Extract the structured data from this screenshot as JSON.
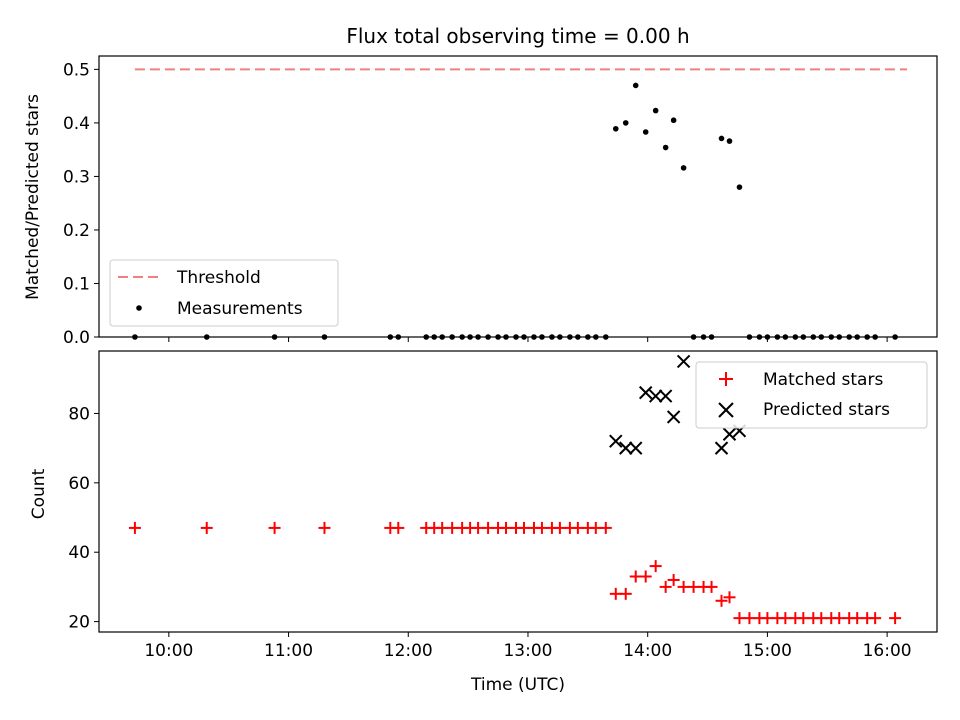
{
  "figure": {
    "title": "Flux total observing time = 0.00 h"
  },
  "chart_data": [
    {
      "type": "scatter",
      "panel": "top",
      "ylabel": "Matched/Predicted stars",
      "xlabel": "",
      "xlim": [
        "09:25",
        "16:25"
      ],
      "ylim": [
        0,
        0.525
      ],
      "yticks": [
        0.0,
        0.1,
        0.2,
        0.3,
        0.4,
        0.5
      ],
      "ytick_labels": [
        "0.0",
        "0.1",
        "0.2",
        "0.3",
        "0.4",
        "0.5"
      ],
      "xticks": [
        "10:00",
        "11:00",
        "12:00",
        "13:00",
        "14:00",
        "15:00",
        "16:00"
      ],
      "grid": false,
      "legend": "lower-left",
      "threshold": {
        "name": "Threshold",
        "y": 0.5,
        "x_range": [
          "09:43",
          "16:10"
        ],
        "color": "#f08080",
        "style": "dashed"
      },
      "series": [
        {
          "name": "Measurements",
          "color": "#000000",
          "marker": "dot",
          "points": [
            [
              "09:43",
              0.0
            ],
            [
              "10:19",
              0.0
            ],
            [
              "10:53",
              0.0
            ],
            [
              "11:18",
              0.0
            ],
            [
              "11:51",
              0.0
            ],
            [
              "11:55",
              0.0
            ],
            [
              "12:09",
              0.0
            ],
            [
              "12:13",
              0.0
            ],
            [
              "12:17",
              0.0
            ],
            [
              "12:22",
              0.0
            ],
            [
              "12:27",
              0.0
            ],
            [
              "12:31",
              0.0
            ],
            [
              "12:35",
              0.0
            ],
            [
              "12:40",
              0.0
            ],
            [
              "12:45",
              0.0
            ],
            [
              "12:49",
              0.0
            ],
            [
              "12:54",
              0.0
            ],
            [
              "12:58",
              0.0
            ],
            [
              "13:03",
              0.0
            ],
            [
              "13:07",
              0.0
            ],
            [
              "13:12",
              0.0
            ],
            [
              "13:16",
              0.0
            ],
            [
              "13:21",
              0.0
            ],
            [
              "13:25",
              0.0
            ],
            [
              "13:30",
              0.0
            ],
            [
              "13:34",
              0.0
            ],
            [
              "13:39",
              0.0
            ],
            [
              "13:44",
              0.389
            ],
            [
              "13:49",
              0.4
            ],
            [
              "13:54",
              0.47
            ],
            [
              "13:59",
              0.383
            ],
            [
              "14:04",
              0.423
            ],
            [
              "14:09",
              0.354
            ],
            [
              "14:13",
              0.405
            ],
            [
              "14:18",
              0.316
            ],
            [
              "14:23",
              0.0
            ],
            [
              "14:28",
              0.0
            ],
            [
              "14:32",
              0.0
            ],
            [
              "14:37",
              0.371
            ],
            [
              "14:41",
              0.366
            ],
            [
              "14:46",
              0.28
            ],
            [
              "14:51",
              0.0
            ],
            [
              "14:56",
              0.0
            ],
            [
              "15:00",
              0.0
            ],
            [
              "15:05",
              0.0
            ],
            [
              "15:09",
              0.0
            ],
            [
              "15:14",
              0.0
            ],
            [
              "15:18",
              0.0
            ],
            [
              "15:23",
              0.0
            ],
            [
              "15:27",
              0.0
            ],
            [
              "15:32",
              0.0
            ],
            [
              "15:36",
              0.0
            ],
            [
              "15:41",
              0.0
            ],
            [
              "15:45",
              0.0
            ],
            [
              "15:50",
              0.0
            ],
            [
              "15:54",
              0.0
            ],
            [
              "16:04",
              0.0
            ]
          ]
        }
      ]
    },
    {
      "type": "scatter",
      "panel": "bottom",
      "ylabel": "Count",
      "xlabel": "Time (UTC)",
      "xlim": [
        "09:25",
        "16:25"
      ],
      "ylim": [
        17,
        98
      ],
      "yticks": [
        20,
        40,
        60,
        80
      ],
      "ytick_labels": [
        "20",
        "40",
        "60",
        "80"
      ],
      "xticks": [
        "10:00",
        "11:00",
        "12:00",
        "13:00",
        "14:00",
        "15:00",
        "16:00"
      ],
      "xtick_labels": [
        "10:00",
        "11:00",
        "12:00",
        "13:00",
        "14:00",
        "15:00",
        "16:00"
      ],
      "grid": false,
      "legend": "upper-right",
      "series": [
        {
          "name": "Matched stars",
          "color": "#ff0000",
          "marker": "plus",
          "points": [
            [
              "09:43",
              47
            ],
            [
              "10:19",
              47
            ],
            [
              "10:53",
              47
            ],
            [
              "11:18",
              47
            ],
            [
              "11:51",
              47
            ],
            [
              "11:55",
              47
            ],
            [
              "12:09",
              47
            ],
            [
              "12:13",
              47
            ],
            [
              "12:17",
              47
            ],
            [
              "12:22",
              47
            ],
            [
              "12:27",
              47
            ],
            [
              "12:31",
              47
            ],
            [
              "12:35",
              47
            ],
            [
              "12:40",
              47
            ],
            [
              "12:45",
              47
            ],
            [
              "12:49",
              47
            ],
            [
              "12:54",
              47
            ],
            [
              "12:58",
              47
            ],
            [
              "13:03",
              47
            ],
            [
              "13:07",
              47
            ],
            [
              "13:12",
              47
            ],
            [
              "13:16",
              47
            ],
            [
              "13:21",
              47
            ],
            [
              "13:25",
              47
            ],
            [
              "13:30",
              47
            ],
            [
              "13:34",
              47
            ],
            [
              "13:39",
              47
            ],
            [
              "13:44",
              28
            ],
            [
              "13:49",
              28
            ],
            [
              "13:54",
              33
            ],
            [
              "13:59",
              33
            ],
            [
              "14:04",
              36
            ],
            [
              "14:09",
              30
            ],
            [
              "14:13",
              32
            ],
            [
              "14:18",
              30
            ],
            [
              "14:23",
              30
            ],
            [
              "14:28",
              30
            ],
            [
              "14:32",
              30
            ],
            [
              "14:37",
              26
            ],
            [
              "14:41",
              27
            ],
            [
              "14:46",
              21
            ],
            [
              "14:51",
              21
            ],
            [
              "14:56",
              21
            ],
            [
              "15:00",
              21
            ],
            [
              "15:05",
              21
            ],
            [
              "15:09",
              21
            ],
            [
              "15:14",
              21
            ],
            [
              "15:18",
              21
            ],
            [
              "15:23",
              21
            ],
            [
              "15:27",
              21
            ],
            [
              "15:32",
              21
            ],
            [
              "15:36",
              21
            ],
            [
              "15:41",
              21
            ],
            [
              "15:45",
              21
            ],
            [
              "15:50",
              21
            ],
            [
              "15:54",
              21
            ],
            [
              "16:04",
              21
            ]
          ]
        },
        {
          "name": "Predicted stars",
          "color": "#000000",
          "marker": "x",
          "points": [
            [
              "13:44",
              72
            ],
            [
              "13:49",
              70
            ],
            [
              "13:54",
              70
            ],
            [
              "13:59",
              86
            ],
            [
              "14:04",
              85
            ],
            [
              "14:09",
              85
            ],
            [
              "14:13",
              79
            ],
            [
              "14:18",
              95
            ],
            [
              "14:37",
              70
            ],
            [
              "14:41",
              74
            ],
            [
              "14:46",
              75
            ]
          ]
        }
      ]
    }
  ]
}
